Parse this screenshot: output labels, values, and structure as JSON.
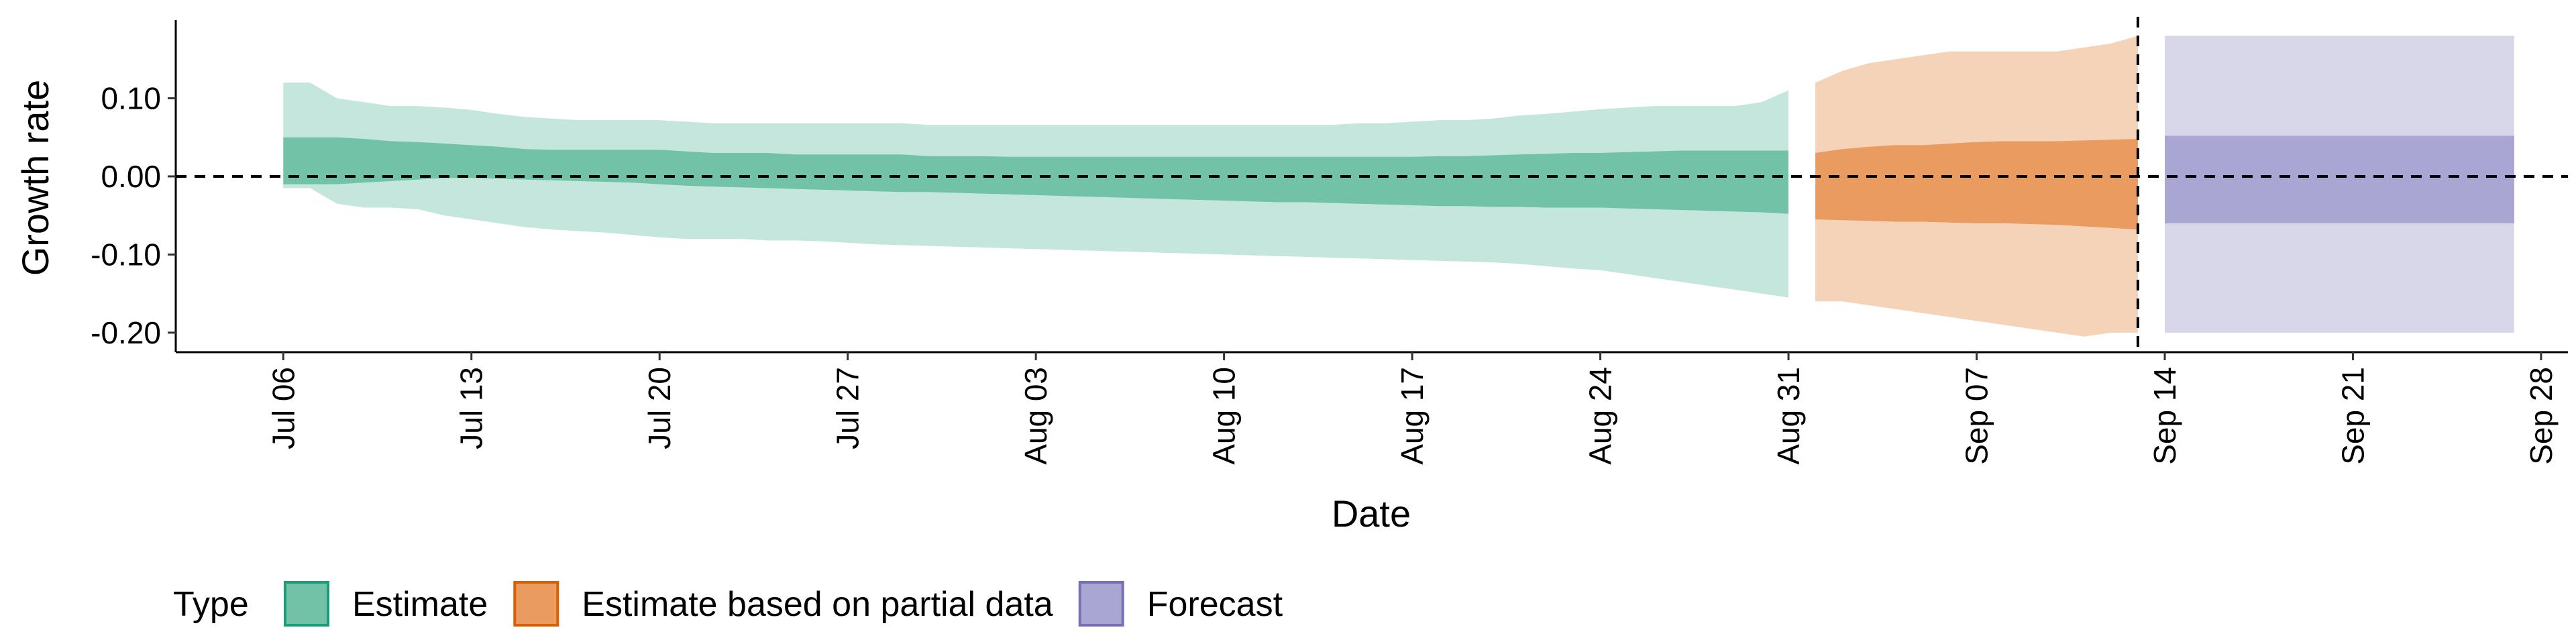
{
  "chart_data": {
    "type": "area",
    "xlabel": "Date",
    "ylabel": "Growth rate",
    "ylim": [
      -0.225,
      0.2
    ],
    "y_ticks": [
      "-0.20",
      "-0.10",
      "0.00",
      "0.10"
    ],
    "y_tick_values": [
      -0.2,
      -0.1,
      0.0,
      0.1
    ],
    "x_ticks": [
      "Jul 06",
      "Jul 13",
      "Jul 20",
      "Jul 27",
      "Aug 03",
      "Aug 10",
      "Aug 17",
      "Aug 24",
      "Aug 31",
      "Sep 07",
      "Sep 14",
      "Sep 21",
      "Sep 28"
    ],
    "xlim": [
      "2020-07-02",
      "2020-09-29"
    ],
    "reference_lines": {
      "horizontal_y": 0.0,
      "vertical_date": "2020-09-13"
    },
    "legend": {
      "title": "Type",
      "position": "bottom",
      "entries": [
        "Estimate",
        "Estimate based on partial data",
        "Forecast"
      ]
    },
    "colors": {
      "Estimate": {
        "outer": "#c4e6dc",
        "inner": "#72c2a8",
        "border": "#1b9e77"
      },
      "Estimate based on partial data": {
        "outer": "#f5d3b9",
        "inner": "#e99b60",
        "border": "#d95f02"
      },
      "Forecast": {
        "outer": "#d8d7ea",
        "inner": "#a9a6d3",
        "border": "#7570b3"
      }
    },
    "series": [
      {
        "name": "Estimate",
        "dates": [
          "2020-07-06",
          "2020-07-07",
          "2020-07-08",
          "2020-07-09",
          "2020-07-10",
          "2020-07-11",
          "2020-07-12",
          "2020-07-13",
          "2020-07-14",
          "2020-07-15",
          "2020-07-16",
          "2020-07-17",
          "2020-07-18",
          "2020-07-19",
          "2020-07-20",
          "2020-07-21",
          "2020-07-22",
          "2020-07-23",
          "2020-07-24",
          "2020-07-25",
          "2020-07-26",
          "2020-07-27",
          "2020-07-28",
          "2020-07-29",
          "2020-07-30",
          "2020-07-31",
          "2020-08-01",
          "2020-08-02",
          "2020-08-03",
          "2020-08-04",
          "2020-08-05",
          "2020-08-06",
          "2020-08-07",
          "2020-08-08",
          "2020-08-09",
          "2020-08-10",
          "2020-08-11",
          "2020-08-12",
          "2020-08-13",
          "2020-08-14",
          "2020-08-15",
          "2020-08-16",
          "2020-08-17",
          "2020-08-18",
          "2020-08-19",
          "2020-08-20",
          "2020-08-21",
          "2020-08-22",
          "2020-08-23",
          "2020-08-24",
          "2020-08-25",
          "2020-08-26",
          "2020-08-27",
          "2020-08-28",
          "2020-08-29",
          "2020-08-30",
          "2020-08-31"
        ],
        "upper90": [
          0.12,
          0.12,
          0.1,
          0.095,
          0.09,
          0.09,
          0.088,
          0.085,
          0.08,
          0.076,
          0.074,
          0.072,
          0.072,
          0.072,
          0.072,
          0.07,
          0.068,
          0.068,
          0.068,
          0.068,
          0.068,
          0.068,
          0.068,
          0.068,
          0.066,
          0.066,
          0.066,
          0.066,
          0.066,
          0.066,
          0.066,
          0.066,
          0.066,
          0.066,
          0.066,
          0.066,
          0.066,
          0.066,
          0.066,
          0.066,
          0.068,
          0.068,
          0.07,
          0.072,
          0.072,
          0.074,
          0.078,
          0.08,
          0.083,
          0.086,
          0.088,
          0.09,
          0.09,
          0.09,
          0.09,
          0.095,
          0.11
        ],
        "upper50": [
          0.05,
          0.05,
          0.05,
          0.048,
          0.045,
          0.044,
          0.042,
          0.04,
          0.038,
          0.035,
          0.034,
          0.034,
          0.034,
          0.034,
          0.034,
          0.032,
          0.03,
          0.03,
          0.03,
          0.028,
          0.028,
          0.028,
          0.028,
          0.028,
          0.026,
          0.026,
          0.026,
          0.025,
          0.025,
          0.025,
          0.025,
          0.025,
          0.025,
          0.025,
          0.025,
          0.025,
          0.025,
          0.025,
          0.025,
          0.025,
          0.025,
          0.025,
          0.025,
          0.026,
          0.026,
          0.027,
          0.028,
          0.029,
          0.03,
          0.03,
          0.031,
          0.032,
          0.033,
          0.033,
          0.033,
          0.033,
          0.033
        ],
        "lower50": [
          -0.01,
          -0.01,
          -0.01,
          -0.008,
          -0.006,
          -0.004,
          -0.002,
          -0.002,
          -0.003,
          -0.004,
          -0.005,
          -0.006,
          -0.007,
          -0.008,
          -0.01,
          -0.012,
          -0.013,
          -0.014,
          -0.015,
          -0.016,
          -0.017,
          -0.018,
          -0.019,
          -0.02,
          -0.02,
          -0.021,
          -0.022,
          -0.023,
          -0.024,
          -0.025,
          -0.026,
          -0.027,
          -0.028,
          -0.029,
          -0.03,
          -0.031,
          -0.032,
          -0.033,
          -0.033,
          -0.034,
          -0.035,
          -0.036,
          -0.037,
          -0.038,
          -0.038,
          -0.039,
          -0.039,
          -0.04,
          -0.04,
          -0.04,
          -0.041,
          -0.042,
          -0.043,
          -0.044,
          -0.045,
          -0.046,
          -0.048
        ],
        "lower90": [
          -0.015,
          -0.015,
          -0.035,
          -0.04,
          -0.04,
          -0.042,
          -0.05,
          -0.055,
          -0.06,
          -0.065,
          -0.068,
          -0.07,
          -0.072,
          -0.075,
          -0.078,
          -0.08,
          -0.08,
          -0.08,
          -0.082,
          -0.082,
          -0.083,
          -0.085,
          -0.087,
          -0.088,
          -0.089,
          -0.09,
          -0.091,
          -0.092,
          -0.093,
          -0.094,
          -0.095,
          -0.096,
          -0.097,
          -0.098,
          -0.099,
          -0.1,
          -0.101,
          -0.102,
          -0.103,
          -0.104,
          -0.105,
          -0.106,
          -0.107,
          -0.108,
          -0.109,
          -0.11,
          -0.112,
          -0.115,
          -0.118,
          -0.12,
          -0.125,
          -0.13,
          -0.135,
          -0.14,
          -0.145,
          -0.15,
          -0.155
        ]
      },
      {
        "name": "Estimate based on partial data",
        "dates": [
          "2020-09-01",
          "2020-09-02",
          "2020-09-03",
          "2020-09-04",
          "2020-09-05",
          "2020-09-06",
          "2020-09-07",
          "2020-09-08",
          "2020-09-09",
          "2020-09-10",
          "2020-09-11",
          "2020-09-12",
          "2020-09-13"
        ],
        "upper90": [
          0.12,
          0.135,
          0.145,
          0.15,
          0.155,
          0.16,
          0.16,
          0.16,
          0.16,
          0.16,
          0.165,
          0.17,
          0.18
        ],
        "upper50": [
          0.03,
          0.035,
          0.038,
          0.04,
          0.04,
          0.042,
          0.044,
          0.045,
          0.045,
          0.045,
          0.046,
          0.047,
          0.048
        ],
        "lower50": [
          -0.055,
          -0.056,
          -0.057,
          -0.058,
          -0.058,
          -0.059,
          -0.06,
          -0.06,
          -0.061,
          -0.062,
          -0.064,
          -0.066,
          -0.068
        ],
        "lower90": [
          -0.16,
          -0.16,
          -0.165,
          -0.17,
          -0.175,
          -0.18,
          -0.185,
          -0.19,
          -0.195,
          -0.2,
          -0.205,
          -0.2,
          -0.2
        ]
      },
      {
        "name": "Forecast",
        "dates": [
          "2020-09-14",
          "2020-09-27"
        ],
        "upper90": [
          0.18,
          0.18
        ],
        "upper50": [
          0.052,
          0.052
        ],
        "lower50": [
          -0.06,
          -0.06
        ],
        "lower90": [
          -0.2,
          -0.2
        ]
      }
    ]
  }
}
